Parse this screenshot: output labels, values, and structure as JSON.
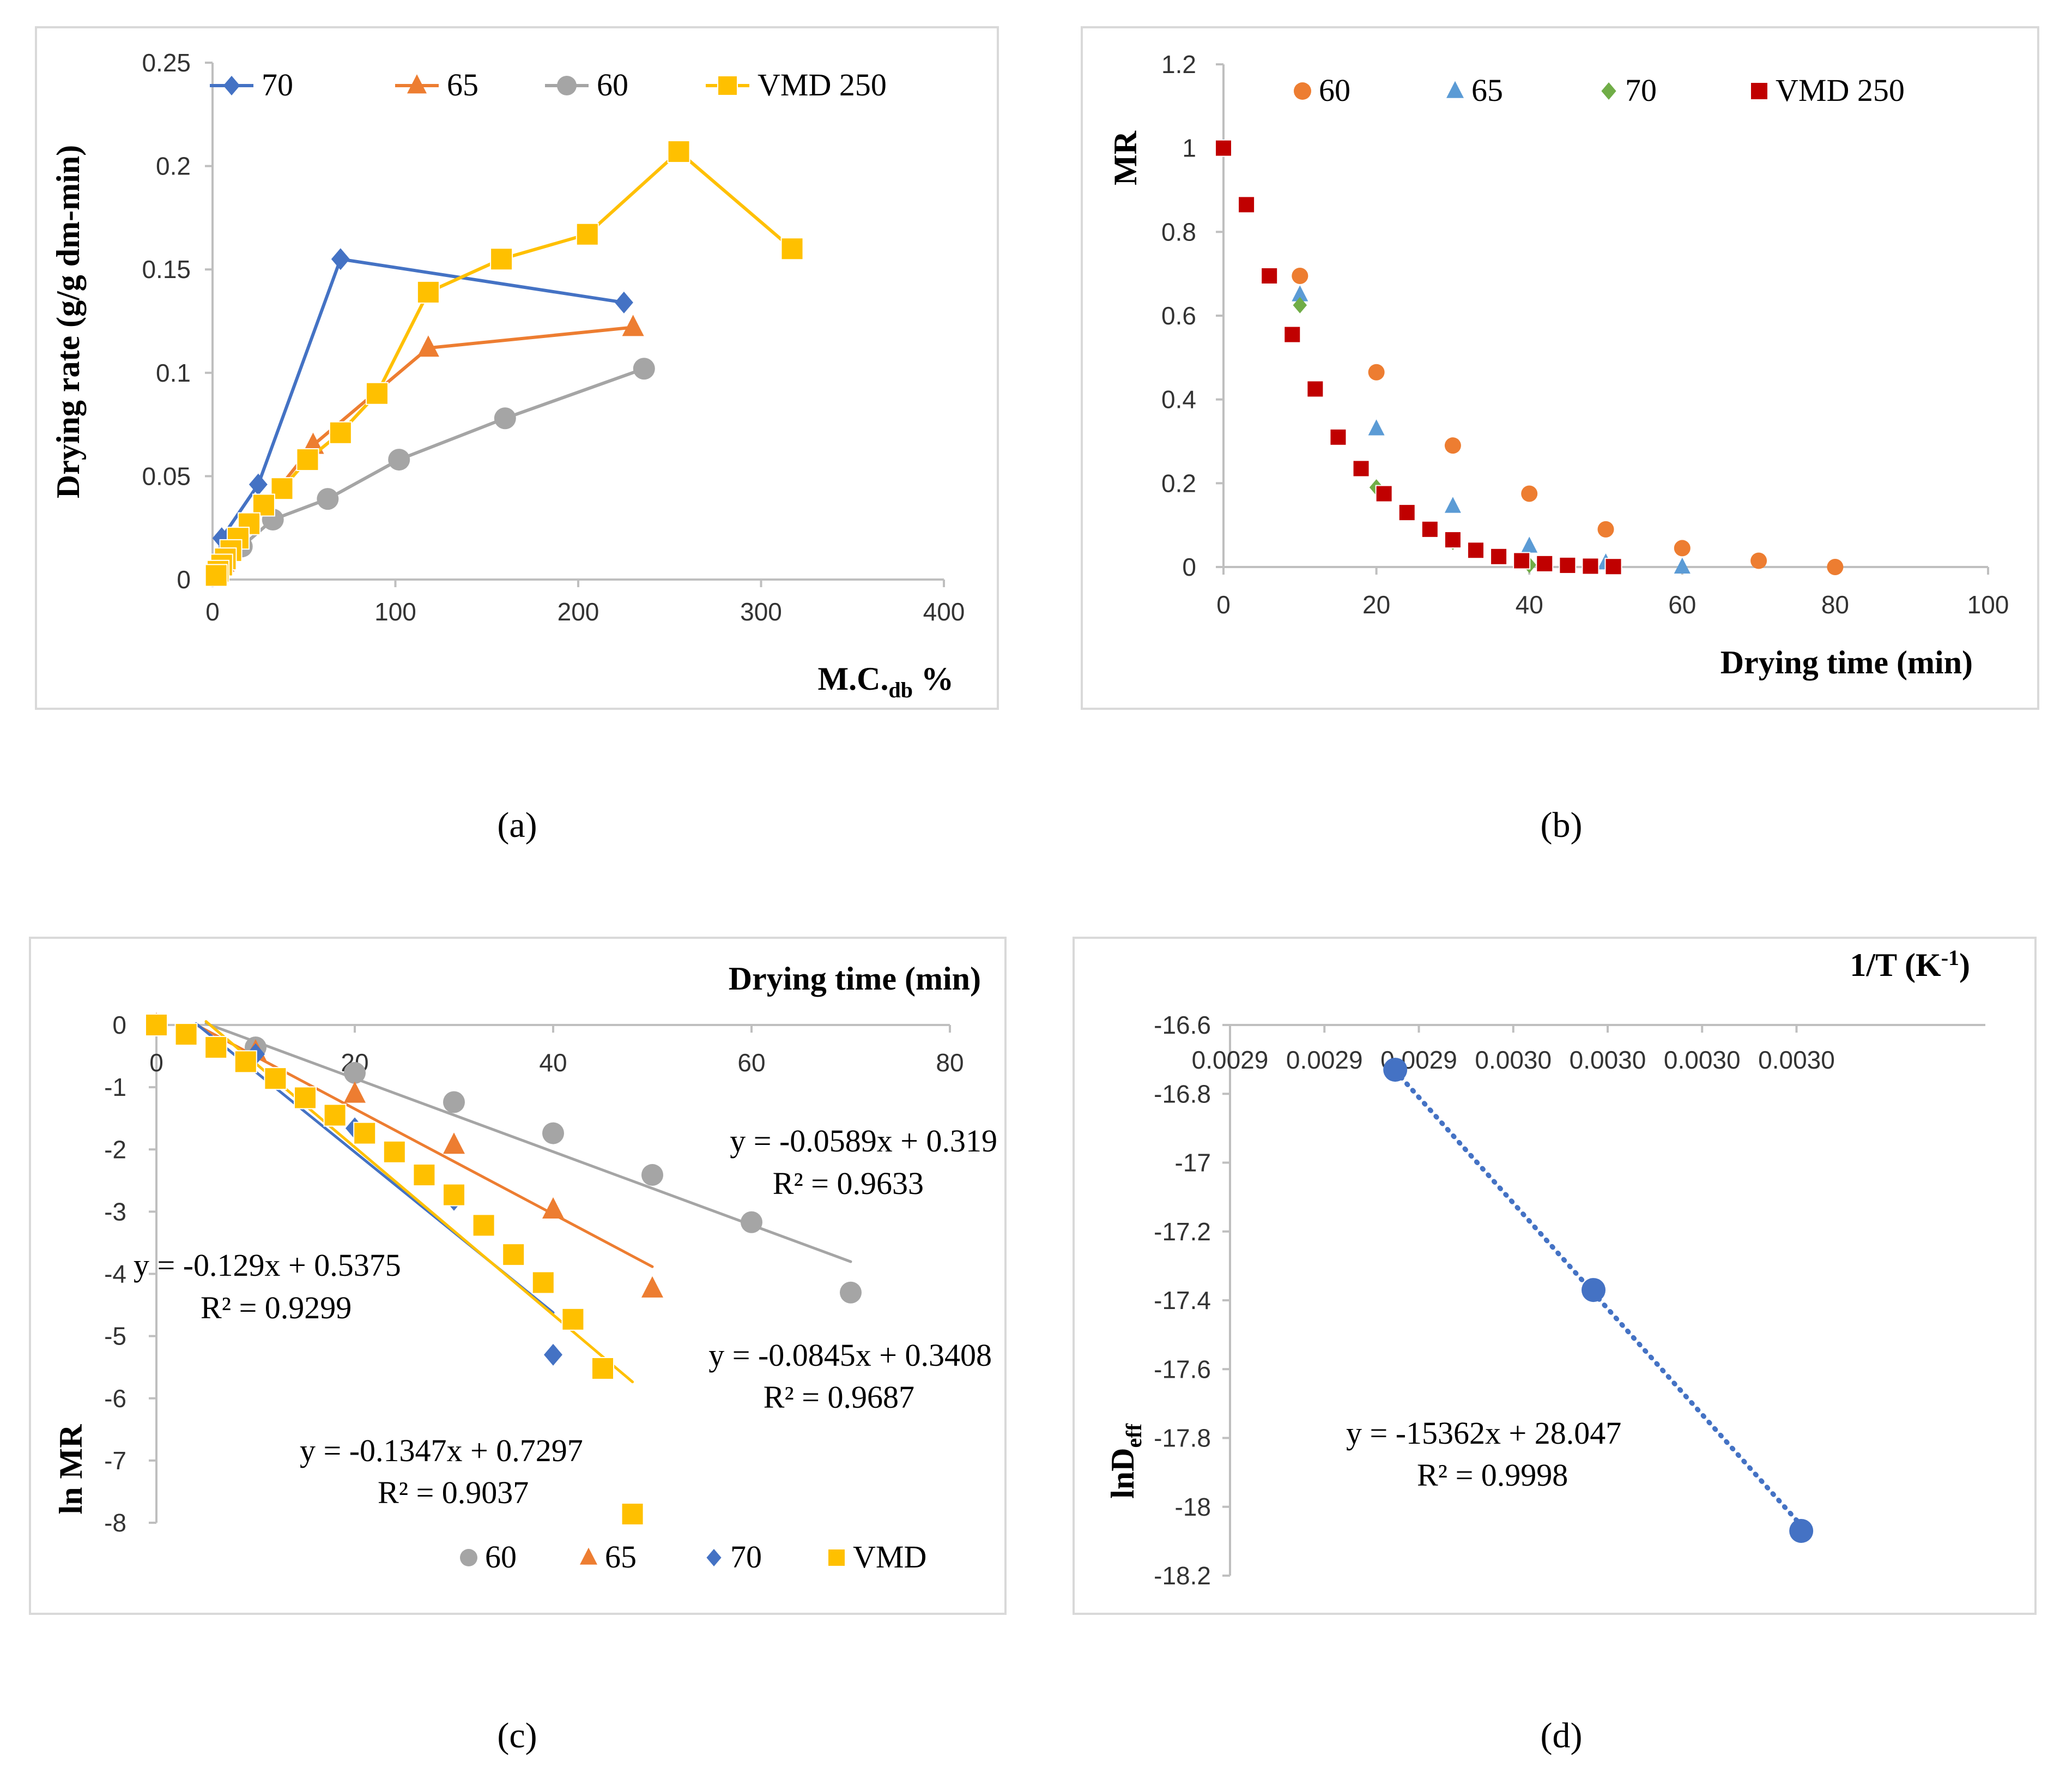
{
  "colors": {
    "blue": "#4472c4",
    "orange": "#ed7d31",
    "gray": "#a5a5a5",
    "yellow": "#ffc000",
    "green": "#70ad47",
    "red": "#c00000",
    "axis": "#bfbfbf"
  },
  "chart_data": [
    {
      "id": "a",
      "type": "line",
      "caption": "(a)",
      "xlabel": "M.C.",
      "xlabel_sub": "db",
      "xlabel_suffix": " %",
      "ylabel": "Drying rate (g/g dm-min)",
      "xlim": [
        0,
        400
      ],
      "ylim": [
        0,
        0.25
      ],
      "xticks": [
        0,
        100,
        200,
        300,
        400
      ],
      "xtick_labels": [
        "0",
        "100",
        "200",
        "300",
        "400"
      ],
      "yticks": [
        0,
        0.05,
        0.1,
        0.15,
        0.2,
        0.25
      ],
      "ytick_labels": [
        "0",
        "0.05",
        "0.1",
        "0.15",
        "0.2",
        "0.25"
      ],
      "legend_position": "top",
      "series": [
        {
          "name": "70",
          "color": "#4472c4",
          "marker": "diamond",
          "x": [
            225,
            70,
            25,
            5,
            2
          ],
          "y": [
            0.134,
            0.155,
            0.046,
            0.02,
            0.003
          ]
        },
        {
          "name": "65",
          "color": "#ed7d31",
          "marker": "triangle",
          "x": [
            230,
            118,
            55,
            28,
            14,
            6,
            2
          ],
          "y": [
            0.122,
            0.112,
            0.065,
            0.035,
            0.02,
            0.008,
            0.002
          ]
        },
        {
          "name": "60",
          "color": "#a5a5a5",
          "marker": "circle",
          "x": [
            236,
            160,
            102,
            63,
            33,
            16,
            6,
            2
          ],
          "y": [
            0.102,
            0.078,
            0.058,
            0.039,
            0.029,
            0.016,
            0.007,
            0.003
          ]
        },
        {
          "name": "VMD 250",
          "color": "#ffc000",
          "marker": "square",
          "x": [
            317,
            255,
            205,
            158,
            118,
            90,
            70,
            52,
            38,
            28,
            20,
            14,
            10,
            7,
            5,
            3,
            2
          ],
          "y": [
            0.16,
            0.207,
            0.167,
            0.155,
            0.139,
            0.09,
            0.071,
            0.058,
            0.044,
            0.036,
            0.027,
            0.02,
            0.014,
            0.01,
            0.007,
            0.004,
            0.002
          ]
        }
      ]
    },
    {
      "id": "b",
      "type": "scatter",
      "caption": "(b)",
      "xlabel": "Drying time (min)",
      "ylabel": "MR",
      "xlim": [
        0,
        100
      ],
      "ylim": [
        0,
        1.2
      ],
      "xticks": [
        0,
        20,
        40,
        60,
        80,
        100
      ],
      "xtick_labels": [
        "0",
        "20",
        "40",
        "60",
        "80",
        "100"
      ],
      "yticks": [
        0,
        0.2,
        0.4,
        0.6,
        0.8,
        1,
        1.2
      ],
      "ytick_labels": [
        "0",
        "0.2",
        "0.4",
        "0.6",
        "0.8",
        "1",
        "1.2"
      ],
      "legend_position": "top",
      "series": [
        {
          "name": "60",
          "color": "#ed7d31",
          "marker": "circle",
          "x": [
            0,
            10,
            20,
            30,
            40,
            50,
            60,
            70,
            80
          ],
          "y": [
            1,
            0.695,
            0.465,
            0.29,
            0.175,
            0.09,
            0.045,
            0.015,
            0
          ]
        },
        {
          "name": "65",
          "color": "#5b9bd5",
          "marker": "triangle",
          "x": [
            0,
            10,
            20,
            30,
            40,
            50,
            60
          ],
          "y": [
            1,
            0.65,
            0.33,
            0.145,
            0.05,
            0.01,
            0
          ]
        },
        {
          "name": "70",
          "color": "#70ad47",
          "marker": "diamond",
          "x": [
            0,
            10,
            20,
            30,
            40
          ],
          "y": [
            1,
            0.625,
            0.19,
            0.06,
            0.005
          ]
        },
        {
          "name": "VMD 250",
          "color": "#c00000",
          "marker": "square",
          "x": [
            0,
            3,
            6,
            9,
            12,
            15,
            18,
            21,
            24,
            27,
            30,
            33,
            36,
            39,
            42,
            45,
            48,
            51
          ],
          "y": [
            1,
            0.865,
            0.695,
            0.555,
            0.425,
            0.31,
            0.235,
            0.175,
            0.13,
            0.09,
            0.065,
            0.04,
            0.025,
            0.015,
            0.008,
            0.004,
            0.002,
            0.001
          ]
        }
      ]
    },
    {
      "id": "c",
      "type": "scatter",
      "caption": "(c)",
      "xlabel": "Drying time (min)",
      "ylabel": "ln MR",
      "xlim": [
        0,
        80
      ],
      "ylim": [
        -8,
        0
      ],
      "xticks": [
        0,
        20,
        40,
        60,
        80
      ],
      "xtick_labels": [
        "0",
        "20",
        "40",
        "60",
        "80"
      ],
      "yticks": [
        0,
        -1,
        -2,
        -3,
        -4,
        -5,
        -6,
        -7,
        -8
      ],
      "ytick_labels": [
        "0",
        "-1",
        "-2",
        "-3",
        "-4",
        "-5",
        "-6",
        "-7",
        "-8"
      ],
      "legend_position": "bottom",
      "series": [
        {
          "name": "60",
          "color": "#a5a5a5",
          "marker": "circle",
          "x": [
            0,
            10,
            20,
            30,
            40,
            50,
            60,
            70
          ],
          "y": [
            0,
            -0.36,
            -0.77,
            -1.24,
            -1.74,
            -2.41,
            -3.17,
            -4.3
          ],
          "fit": {
            "slope": -0.0589,
            "intercept": 0.319,
            "x0": 5,
            "x1": 70
          }
        },
        {
          "name": "65",
          "color": "#ed7d31",
          "marker": "triangle",
          "x": [
            0,
            10,
            20,
            30,
            40,
            50
          ],
          "y": [
            0,
            -0.43,
            -1.11,
            -1.93,
            -2.97,
            -4.24
          ],
          "fit": {
            "slope": -0.0845,
            "intercept": 0.3408,
            "x0": 4,
            "x1": 50
          }
        },
        {
          "name": "70",
          "color": "#4472c4",
          "marker": "diamond",
          "x": [
            0,
            10,
            20,
            30,
            40
          ],
          "y": [
            0,
            -0.47,
            -1.66,
            -2.81,
            -5.3
          ],
          "fit": {
            "slope": -0.129,
            "intercept": 0.5375,
            "x0": 4,
            "x1": 40
          }
        },
        {
          "name": "VMD",
          "color": "#ffc000",
          "marker": "square",
          "x": [
            0,
            3,
            6,
            9,
            12,
            15,
            18,
            21,
            24,
            27,
            30,
            33,
            36,
            39,
            42,
            45,
            48
          ],
          "y": [
            0,
            -0.15,
            -0.36,
            -0.59,
            -0.86,
            -1.17,
            -1.45,
            -1.74,
            -2.04,
            -2.41,
            -2.73,
            -3.22,
            -3.69,
            -4.14,
            -4.73,
            -5.52,
            -7.86
          ],
          "fit": {
            "slope": -0.1347,
            "intercept": 0.7297,
            "x0": 5,
            "x1": 48
          }
        }
      ],
      "equations": [
        {
          "eq": "y = -0.0589x + 0.319",
          "r2": "R² = 0.9633"
        },
        {
          "eq": "y = -0.129x + 0.5375",
          "r2": "R² = 0.9299"
        },
        {
          "eq": "y = -0.0845x + 0.3408",
          "r2": "R² = 0.9687"
        },
        {
          "eq": "y = -0.1347x + 0.7297",
          "r2": "R² = 0.9037"
        }
      ]
    },
    {
      "id": "d",
      "type": "scatter",
      "caption": "(d)",
      "xlabel": "1/T (K",
      "xlabel_sup": "-1",
      "xlabel_suffix": ")",
      "ylabel": "lnD",
      "ylabel_sub": "eff",
      "xlim": [
        0.00288,
        0.00304
      ],
      "ylim": [
        -18.2,
        -16.6
      ],
      "xticks": [
        0.00288,
        0.0029,
        0.00292,
        0.00294,
        0.00296,
        0.00298,
        0.003
      ],
      "xtick_labels": [
        "0.0029",
        "0.0029",
        "0.0029",
        "0.0030",
        "0.0030",
        "0.0030",
        "0.0030"
      ],
      "yticks": [
        -16.6,
        -16.8,
        -17,
        -17.2,
        -17.4,
        -17.6,
        -17.8,
        -18,
        -18.2
      ],
      "ytick_labels": [
        "-16.6",
        "-16.8",
        "-17",
        "-17.2",
        "-17.4",
        "-17.6",
        "-17.8",
        "-18",
        "-18.2"
      ],
      "series": [
        {
          "name": "lnDeff",
          "color": "#4472c4",
          "marker": "circle",
          "x": [
            0.002915,
            0.002957,
            0.003001
          ],
          "y": [
            -16.73,
            -17.37,
            -18.07
          ],
          "fit": {
            "slope": -15362,
            "intercept": 28.047,
            "x0": 0.002915,
            "x1": 0.003001
          }
        }
      ],
      "equations": [
        {
          "eq": "y = -15362x + 28.047",
          "r2": "R² = 0.9998"
        }
      ]
    }
  ]
}
